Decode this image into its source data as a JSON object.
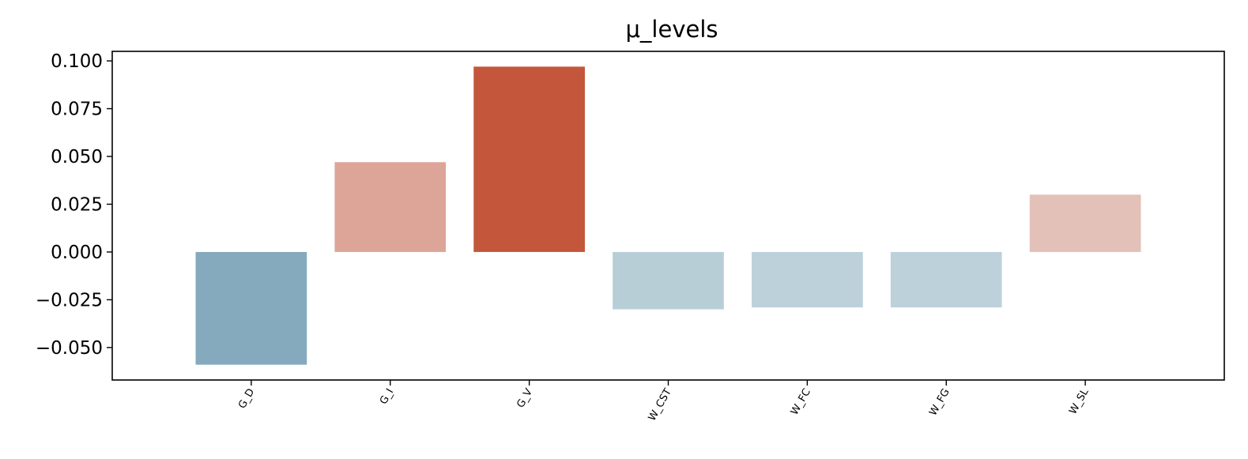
{
  "chart_data": {
    "type": "bar",
    "title": "μ_levels",
    "xlabel": "",
    "ylabel": "",
    "categories": [
      "G_D",
      "G_I",
      "G_V",
      "W_CST",
      "W_FC",
      "W_FG",
      "W_SL"
    ],
    "values": [
      -0.059,
      0.047,
      0.097,
      -0.03,
      -0.029,
      -0.029,
      0.03
    ],
    "colors": [
      "#85aabd",
      "#dda598",
      "#c3563b",
      "#b8ced7",
      "#bdd1da",
      "#bdd1da",
      "#e3c0b8"
    ],
    "ylim": [
      -0.067,
      0.105
    ],
    "xlim": [
      -1.0,
      7.0
    ],
    "yticks": [
      -0.05,
      -0.025,
      0.0,
      0.025,
      0.05,
      0.075,
      0.1
    ],
    "ytick_labels": [
      "−0.050",
      "−0.025",
      "0.000",
      "0.025",
      "0.050",
      "0.075",
      "0.100"
    ],
    "grid": false,
    "legend": "none"
  }
}
